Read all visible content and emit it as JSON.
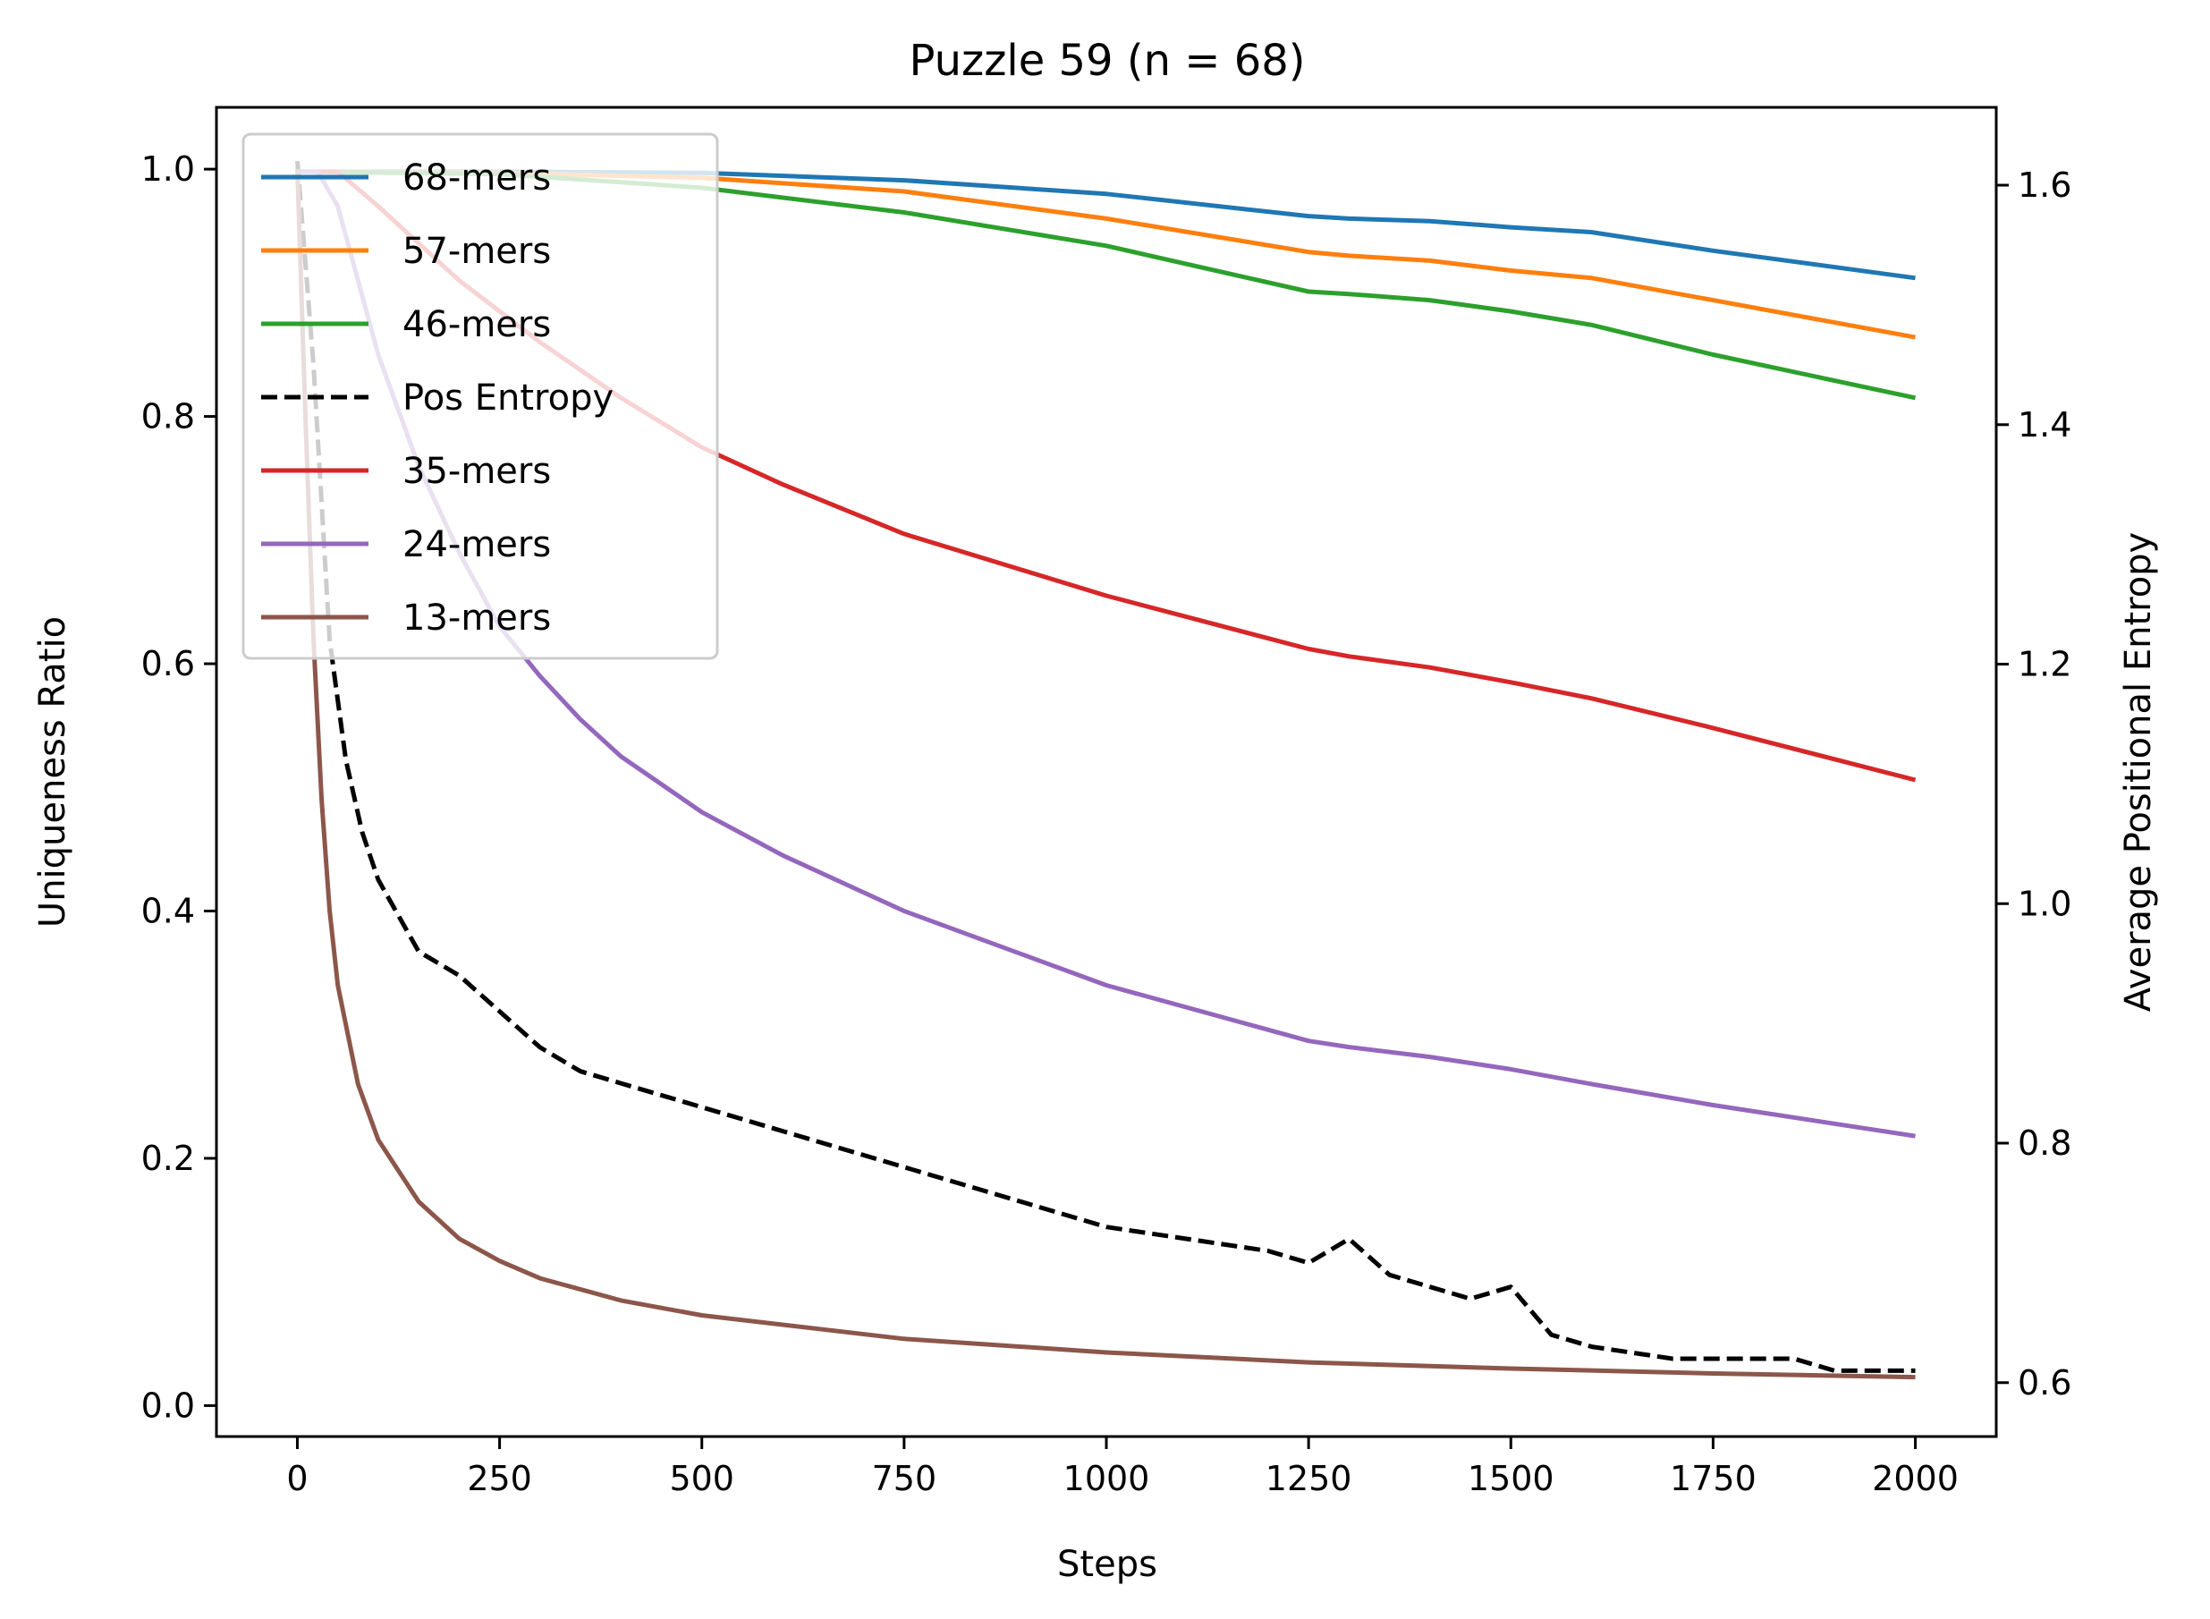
{
  "chart_data": {
    "type": "line",
    "title": "Puzzle 59 (n = 68)",
    "xlabel": "Steps",
    "ylabel": "Uniqueness Ratio",
    "y2label": "Average Positional Entropy",
    "xlim": [
      -100,
      2100
    ],
    "ylim": [
      -0.025,
      1.05
    ],
    "y2lim": [
      0.555,
      1.665
    ],
    "xticks": [
      0,
      250,
      500,
      750,
      1000,
      1250,
      1500,
      1750,
      2000
    ],
    "yticks": [
      0.0,
      0.2,
      0.4,
      0.6,
      0.8,
      1.0
    ],
    "y2ticks": [
      0.6,
      0.8,
      1.0,
      1.2,
      1.4,
      1.6
    ],
    "legend_position": "upper left",
    "series": [
      {
        "name": "68-mers",
        "axis": "left",
        "color": "#1f77b4",
        "dash": "solid",
        "x": [
          0,
          250,
          500,
          750,
          1000,
          1250,
          1300,
          1400,
          1500,
          1600,
          1750,
          2000
        ],
        "y": [
          0.998,
          0.998,
          0.997,
          0.991,
          0.98,
          0.962,
          0.96,
          0.958,
          0.953,
          0.949,
          0.934,
          0.912
        ]
      },
      {
        "name": "57-mers",
        "axis": "left",
        "color": "#ff7f0e",
        "dash": "solid",
        "x": [
          0,
          250,
          500,
          750,
          1000,
          1250,
          1300,
          1400,
          1500,
          1600,
          1750,
          2000
        ],
        "y": [
          0.998,
          0.997,
          0.993,
          0.982,
          0.96,
          0.933,
          0.93,
          0.926,
          0.918,
          0.912,
          0.894,
          0.864
        ]
      },
      {
        "name": "46-mers",
        "axis": "left",
        "color": "#2ca02c",
        "dash": "solid",
        "x": [
          0,
          250,
          500,
          750,
          1000,
          1250,
          1300,
          1400,
          1500,
          1600,
          1750,
          2000
        ],
        "y": [
          0.998,
          0.996,
          0.985,
          0.965,
          0.938,
          0.901,
          0.899,
          0.894,
          0.885,
          0.874,
          0.85,
          0.815
        ]
      },
      {
        "name": "Pos Entropy",
        "axis": "right",
        "color": "#000000",
        "dash": "dashed",
        "x": [
          0,
          20,
          40,
          60,
          80,
          100,
          150,
          200,
          250,
          300,
          350,
          400,
          500,
          600,
          700,
          800,
          900,
          1000,
          1100,
          1200,
          1250,
          1300,
          1350,
          1400,
          1450,
          1500,
          1550,
          1600,
          1700,
          1800,
          1850,
          1900,
          1950,
          2000
        ],
        "y": [
          1.62,
          1.45,
          1.22,
          1.12,
          1.06,
          1.02,
          0.96,
          0.94,
          0.91,
          0.88,
          0.86,
          0.85,
          0.83,
          0.81,
          0.79,
          0.77,
          0.75,
          0.73,
          0.72,
          0.71,
          0.7,
          0.72,
          0.69,
          0.68,
          0.67,
          0.68,
          0.64,
          0.63,
          0.62,
          0.62,
          0.62,
          0.61,
          0.61,
          0.61
        ]
      },
      {
        "name": "35-mers",
        "axis": "left",
        "color": "#d62728",
        "dash": "solid",
        "x": [
          0,
          50,
          100,
          200,
          300,
          400,
          500,
          600,
          750,
          1000,
          1250,
          1300,
          1400,
          1500,
          1600,
          1750,
          2000
        ],
        "y": [
          0.998,
          0.998,
          0.97,
          0.91,
          0.86,
          0.815,
          0.775,
          0.745,
          0.705,
          0.655,
          0.612,
          0.606,
          0.597,
          0.585,
          0.572,
          0.548,
          0.506
        ]
      },
      {
        "name": "24-mers",
        "axis": "left",
        "color": "#9467bd",
        "dash": "solid",
        "x": [
          0,
          25,
          50,
          100,
          150,
          200,
          250,
          300,
          350,
          400,
          500,
          600,
          750,
          1000,
          1250,
          1300,
          1400,
          1500,
          1600,
          1750,
          2000
        ],
        "y": [
          0.998,
          0.998,
          0.97,
          0.85,
          0.76,
          0.69,
          0.63,
          0.59,
          0.555,
          0.525,
          0.48,
          0.445,
          0.4,
          0.34,
          0.295,
          0.29,
          0.282,
          0.272,
          0.26,
          0.243,
          0.218
        ]
      },
      {
        "name": "13-mers",
        "axis": "left",
        "color": "#8c564b",
        "dash": "solid",
        "x": [
          0,
          10,
          20,
          30,
          40,
          50,
          75,
          100,
          150,
          200,
          250,
          300,
          400,
          500,
          750,
          1000,
          1250,
          1500,
          1750,
          2000
        ],
        "y": [
          1.0,
          0.8,
          0.62,
          0.49,
          0.4,
          0.34,
          0.26,
          0.215,
          0.165,
          0.135,
          0.117,
          0.103,
          0.085,
          0.073,
          0.054,
          0.043,
          0.035,
          0.03,
          0.026,
          0.023
        ]
      }
    ]
  }
}
